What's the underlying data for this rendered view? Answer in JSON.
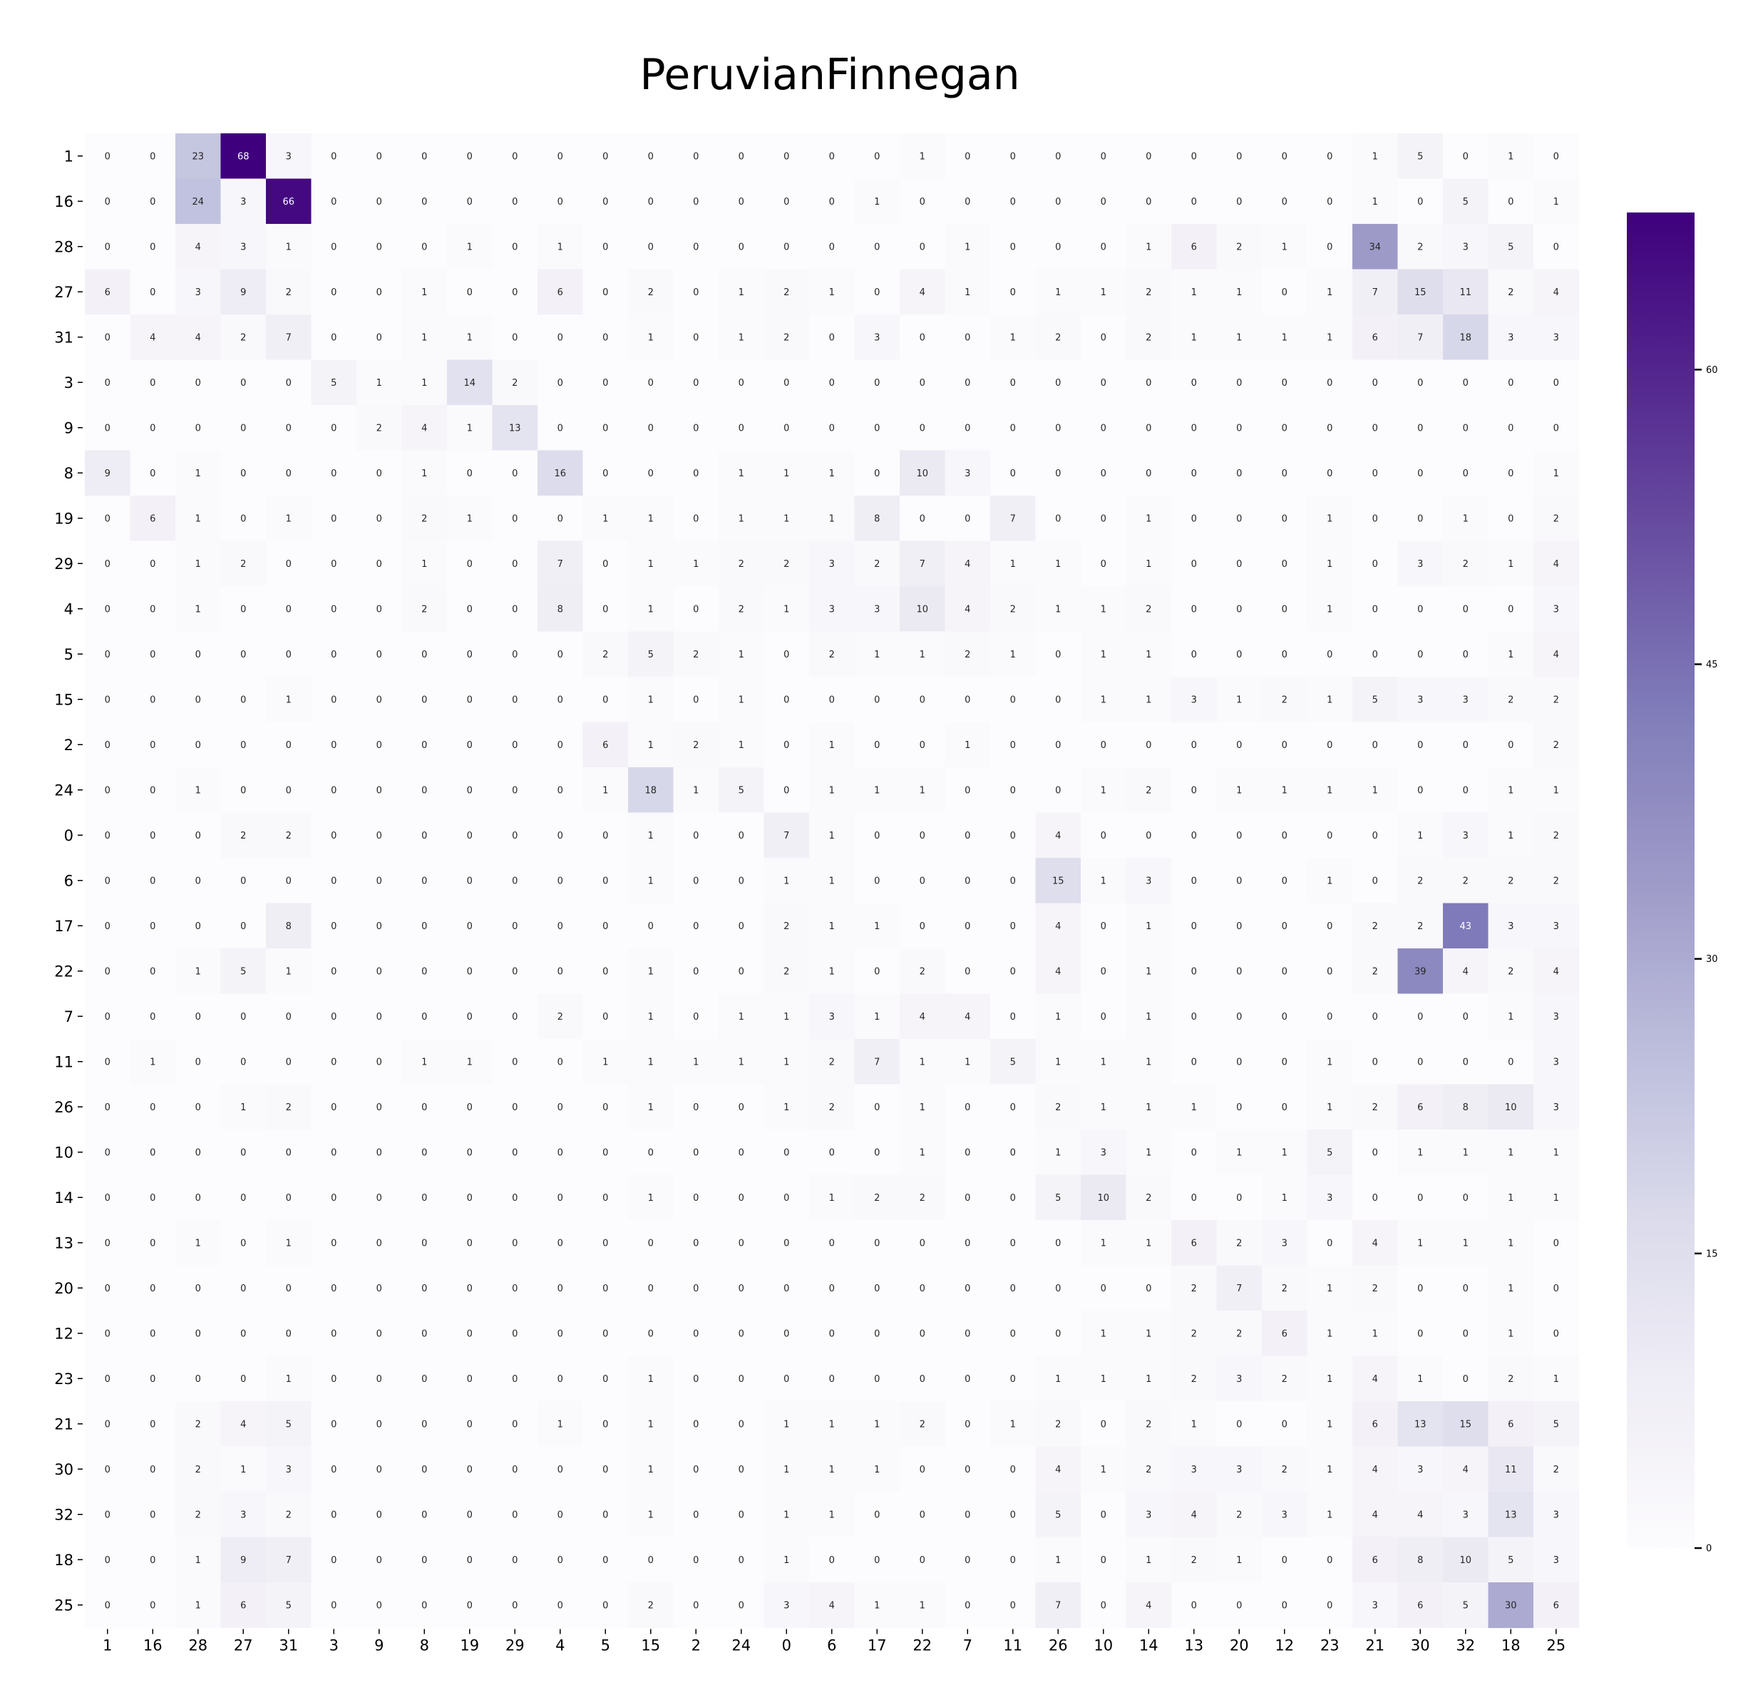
{
  "chart_data": {
    "type": "heatmap",
    "title": "PeruvianFinnegan",
    "xlabel": "",
    "ylabel": "",
    "x_categories": [
      "1",
      "16",
      "28",
      "27",
      "31",
      "3",
      "9",
      "8",
      "19",
      "29",
      "4",
      "5",
      "15",
      "2",
      "24",
      "0",
      "6",
      "17",
      "22",
      "7",
      "11",
      "26",
      "10",
      "14",
      "13",
      "20",
      "12",
      "23",
      "21",
      "30",
      "32",
      "18",
      "25"
    ],
    "y_categories": [
      "1",
      "16",
      "28",
      "27",
      "31",
      "3",
      "9",
      "8",
      "19",
      "29",
      "4",
      "5",
      "15",
      "2",
      "24",
      "0",
      "6",
      "17",
      "22",
      "7",
      "11",
      "26",
      "10",
      "14",
      "13",
      "20",
      "12",
      "23",
      "21",
      "30",
      "32",
      "18",
      "25"
    ],
    "values": [
      [
        0,
        0,
        23,
        68,
        3,
        0,
        0,
        0,
        0,
        0,
        0,
        0,
        0,
        0,
        0,
        0,
        0,
        0,
        1,
        0,
        0,
        0,
        0,
        0,
        0,
        0,
        0,
        0,
        1,
        5,
        0,
        1,
        0
      ],
      [
        0,
        0,
        24,
        3,
        66,
        0,
        0,
        0,
        0,
        0,
        0,
        0,
        0,
        0,
        0,
        0,
        0,
        1,
        0,
        0,
        0,
        0,
        0,
        0,
        0,
        0,
        0,
        0,
        1,
        0,
        5,
        0,
        1
      ],
      [
        0,
        0,
        4,
        3,
        1,
        0,
        0,
        0,
        1,
        0,
        1,
        0,
        0,
        0,
        0,
        0,
        0,
        0,
        0,
        1,
        0,
        0,
        0,
        1,
        6,
        2,
        1,
        0,
        34,
        2,
        3,
        5,
        0
      ],
      [
        6,
        0,
        3,
        9,
        2,
        0,
        0,
        1,
        0,
        0,
        6,
        0,
        2,
        0,
        1,
        2,
        1,
        0,
        4,
        1,
        0,
        1,
        1,
        2,
        1,
        1,
        0,
        1,
        7,
        15,
        11,
        2,
        4
      ],
      [
        0,
        4,
        4,
        2,
        7,
        0,
        0,
        1,
        1,
        0,
        0,
        0,
        1,
        0,
        1,
        2,
        0,
        3,
        0,
        0,
        1,
        2,
        0,
        2,
        1,
        1,
        1,
        1,
        6,
        7,
        18,
        3,
        3
      ],
      [
        0,
        0,
        0,
        0,
        0,
        5,
        1,
        1,
        14,
        2,
        0,
        0,
        0,
        0,
        0,
        0,
        0,
        0,
        0,
        0,
        0,
        0,
        0,
        0,
        0,
        0,
        0,
        0,
        0,
        0,
        0,
        0,
        0
      ],
      [
        0,
        0,
        0,
        0,
        0,
        0,
        2,
        4,
        1,
        13,
        0,
        0,
        0,
        0,
        0,
        0,
        0,
        0,
        0,
        0,
        0,
        0,
        0,
        0,
        0,
        0,
        0,
        0,
        0,
        0,
        0,
        0,
        0
      ],
      [
        9,
        0,
        1,
        0,
        0,
        0,
        0,
        1,
        0,
        0,
        16,
        0,
        0,
        0,
        1,
        1,
        1,
        0,
        10,
        3,
        0,
        0,
        0,
        0,
        0,
        0,
        0,
        0,
        0,
        0,
        0,
        0,
        1
      ],
      [
        0,
        6,
        1,
        0,
        1,
        0,
        0,
        2,
        1,
        0,
        0,
        1,
        1,
        0,
        1,
        1,
        1,
        8,
        0,
        0,
        7,
        0,
        0,
        1,
        0,
        0,
        0,
        1,
        0,
        0,
        1,
        0,
        2
      ],
      [
        0,
        0,
        1,
        2,
        0,
        0,
        0,
        1,
        0,
        0,
        7,
        0,
        1,
        1,
        2,
        2,
        3,
        2,
        7,
        4,
        1,
        1,
        0,
        1,
        0,
        0,
        0,
        1,
        0,
        3,
        2,
        1,
        4
      ],
      [
        0,
        0,
        1,
        0,
        0,
        0,
        0,
        2,
        0,
        0,
        8,
        0,
        1,
        0,
        2,
        1,
        3,
        3,
        10,
        4,
        2,
        1,
        1,
        2,
        0,
        0,
        0,
        1,
        0,
        0,
        0,
        0,
        3
      ],
      [
        0,
        0,
        0,
        0,
        0,
        0,
        0,
        0,
        0,
        0,
        0,
        2,
        5,
        2,
        1,
        0,
        2,
        1,
        1,
        2,
        1,
        0,
        1,
        1,
        0,
        0,
        0,
        0,
        0,
        0,
        0,
        1,
        4
      ],
      [
        0,
        0,
        0,
        0,
        1,
        0,
        0,
        0,
        0,
        0,
        0,
        0,
        1,
        0,
        1,
        0,
        0,
        0,
        0,
        0,
        0,
        0,
        1,
        1,
        3,
        1,
        2,
        1,
        5,
        3,
        3,
        2,
        2
      ],
      [
        0,
        0,
        0,
        0,
        0,
        0,
        0,
        0,
        0,
        0,
        0,
        6,
        1,
        2,
        1,
        0,
        1,
        0,
        0,
        1,
        0,
        0,
        0,
        0,
        0,
        0,
        0,
        0,
        0,
        0,
        0,
        0,
        2
      ],
      [
        0,
        0,
        1,
        0,
        0,
        0,
        0,
        0,
        0,
        0,
        0,
        1,
        18,
        1,
        5,
        0,
        1,
        1,
        1,
        0,
        0,
        0,
        1,
        2,
        0,
        1,
        1,
        1,
        1,
        0,
        0,
        1,
        1
      ],
      [
        0,
        0,
        0,
        2,
        2,
        0,
        0,
        0,
        0,
        0,
        0,
        0,
        1,
        0,
        0,
        7,
        1,
        0,
        0,
        0,
        0,
        4,
        0,
        0,
        0,
        0,
        0,
        0,
        0,
        1,
        3,
        1,
        2
      ],
      [
        0,
        0,
        0,
        0,
        0,
        0,
        0,
        0,
        0,
        0,
        0,
        0,
        1,
        0,
        0,
        1,
        1,
        0,
        0,
        0,
        0,
        15,
        1,
        3,
        0,
        0,
        0,
        1,
        0,
        2,
        2,
        2,
        2
      ],
      [
        0,
        0,
        0,
        0,
        8,
        0,
        0,
        0,
        0,
        0,
        0,
        0,
        0,
        0,
        0,
        2,
        1,
        1,
        0,
        0,
        0,
        4,
        0,
        1,
        0,
        0,
        0,
        0,
        2,
        2,
        43,
        3,
        3
      ],
      [
        0,
        0,
        1,
        5,
        1,
        0,
        0,
        0,
        0,
        0,
        0,
        0,
        1,
        0,
        0,
        2,
        1,
        0,
        2,
        0,
        0,
        4,
        0,
        1,
        0,
        0,
        0,
        0,
        2,
        39,
        4,
        2,
        4
      ],
      [
        0,
        0,
        0,
        0,
        0,
        0,
        0,
        0,
        0,
        0,
        2,
        0,
        1,
        0,
        1,
        1,
        3,
        1,
        4,
        4,
        0,
        1,
        0,
        1,
        0,
        0,
        0,
        0,
        0,
        0,
        0,
        1,
        3
      ],
      [
        0,
        1,
        0,
        0,
        0,
        0,
        0,
        1,
        1,
        0,
        0,
        1,
        1,
        1,
        1,
        1,
        2,
        7,
        1,
        1,
        5,
        1,
        1,
        1,
        0,
        0,
        0,
        1,
        0,
        0,
        0,
        0,
        3
      ],
      [
        0,
        0,
        0,
        1,
        2,
        0,
        0,
        0,
        0,
        0,
        0,
        0,
        1,
        0,
        0,
        1,
        2,
        0,
        1,
        0,
        0,
        2,
        1,
        1,
        1,
        0,
        0,
        1,
        2,
        6,
        8,
        10,
        3
      ],
      [
        0,
        0,
        0,
        0,
        0,
        0,
        0,
        0,
        0,
        0,
        0,
        0,
        0,
        0,
        0,
        0,
        0,
        0,
        1,
        0,
        0,
        1,
        3,
        1,
        0,
        1,
        1,
        5,
        0,
        1,
        1,
        1,
        1
      ],
      [
        0,
        0,
        0,
        0,
        0,
        0,
        0,
        0,
        0,
        0,
        0,
        0,
        1,
        0,
        0,
        0,
        1,
        2,
        2,
        0,
        0,
        5,
        10,
        2,
        0,
        0,
        1,
        3,
        0,
        0,
        0,
        1,
        1
      ],
      [
        0,
        0,
        1,
        0,
        1,
        0,
        0,
        0,
        0,
        0,
        0,
        0,
        0,
        0,
        0,
        0,
        0,
        0,
        0,
        0,
        0,
        0,
        1,
        1,
        6,
        2,
        3,
        0,
        4,
        1,
        1,
        1,
        0
      ],
      [
        0,
        0,
        0,
        0,
        0,
        0,
        0,
        0,
        0,
        0,
        0,
        0,
        0,
        0,
        0,
        0,
        0,
        0,
        0,
        0,
        0,
        0,
        0,
        0,
        2,
        7,
        2,
        1,
        2,
        0,
        0,
        1,
        0
      ],
      [
        0,
        0,
        0,
        0,
        0,
        0,
        0,
        0,
        0,
        0,
        0,
        0,
        0,
        0,
        0,
        0,
        0,
        0,
        0,
        0,
        0,
        0,
        1,
        1,
        2,
        2,
        6,
        1,
        1,
        0,
        0,
        1,
        0
      ],
      [
        0,
        0,
        0,
        0,
        1,
        0,
        0,
        0,
        0,
        0,
        0,
        0,
        1,
        0,
        0,
        0,
        0,
        0,
        0,
        0,
        0,
        1,
        1,
        1,
        2,
        3,
        2,
        1,
        4,
        1,
        0,
        2,
        1
      ],
      [
        0,
        0,
        2,
        4,
        5,
        0,
        0,
        0,
        0,
        0,
        1,
        0,
        1,
        0,
        0,
        1,
        1,
        1,
        2,
        0,
        1,
        2,
        0,
        2,
        1,
        0,
        0,
        1,
        6,
        13,
        15,
        6,
        5
      ],
      [
        0,
        0,
        2,
        1,
        3,
        0,
        0,
        0,
        0,
        0,
        0,
        0,
        1,
        0,
        0,
        1,
        1,
        1,
        0,
        0,
        0,
        4,
        1,
        2,
        3,
        3,
        2,
        1,
        4,
        3,
        4,
        11,
        2
      ],
      [
        0,
        0,
        2,
        3,
        2,
        0,
        0,
        0,
        0,
        0,
        0,
        0,
        1,
        0,
        0,
        1,
        1,
        0,
        0,
        0,
        0,
        5,
        0,
        3,
        4,
        2,
        3,
        1,
        4,
        4,
        3,
        13,
        3
      ],
      [
        0,
        0,
        1,
        9,
        7,
        0,
        0,
        0,
        0,
        0,
        0,
        0,
        0,
        0,
        0,
        1,
        0,
        0,
        0,
        0,
        0,
        1,
        0,
        1,
        2,
        1,
        0,
        0,
        6,
        8,
        10,
        5,
        3
      ],
      [
        0,
        0,
        1,
        6,
        5,
        0,
        0,
        0,
        0,
        0,
        0,
        0,
        2,
        0,
        0,
        3,
        4,
        1,
        1,
        0,
        0,
        7,
        0,
        4,
        0,
        0,
        0,
        0,
        3,
        6,
        5,
        30,
        6
      ]
    ],
    "color_range": [
      0,
      68
    ],
    "colormap": "Purples",
    "colormap_stops": [
      "#fcfbfd",
      "#efedf5",
      "#dadaeb",
      "#bcbddc",
      "#9e9ac8",
      "#807dba",
      "#6a51a3",
      "#54278f",
      "#3f007d"
    ],
    "colorbar_ticks": [
      0,
      15,
      30,
      45,
      60
    ],
    "annotated": true,
    "grid": false,
    "legend": "colorbar-right"
  }
}
